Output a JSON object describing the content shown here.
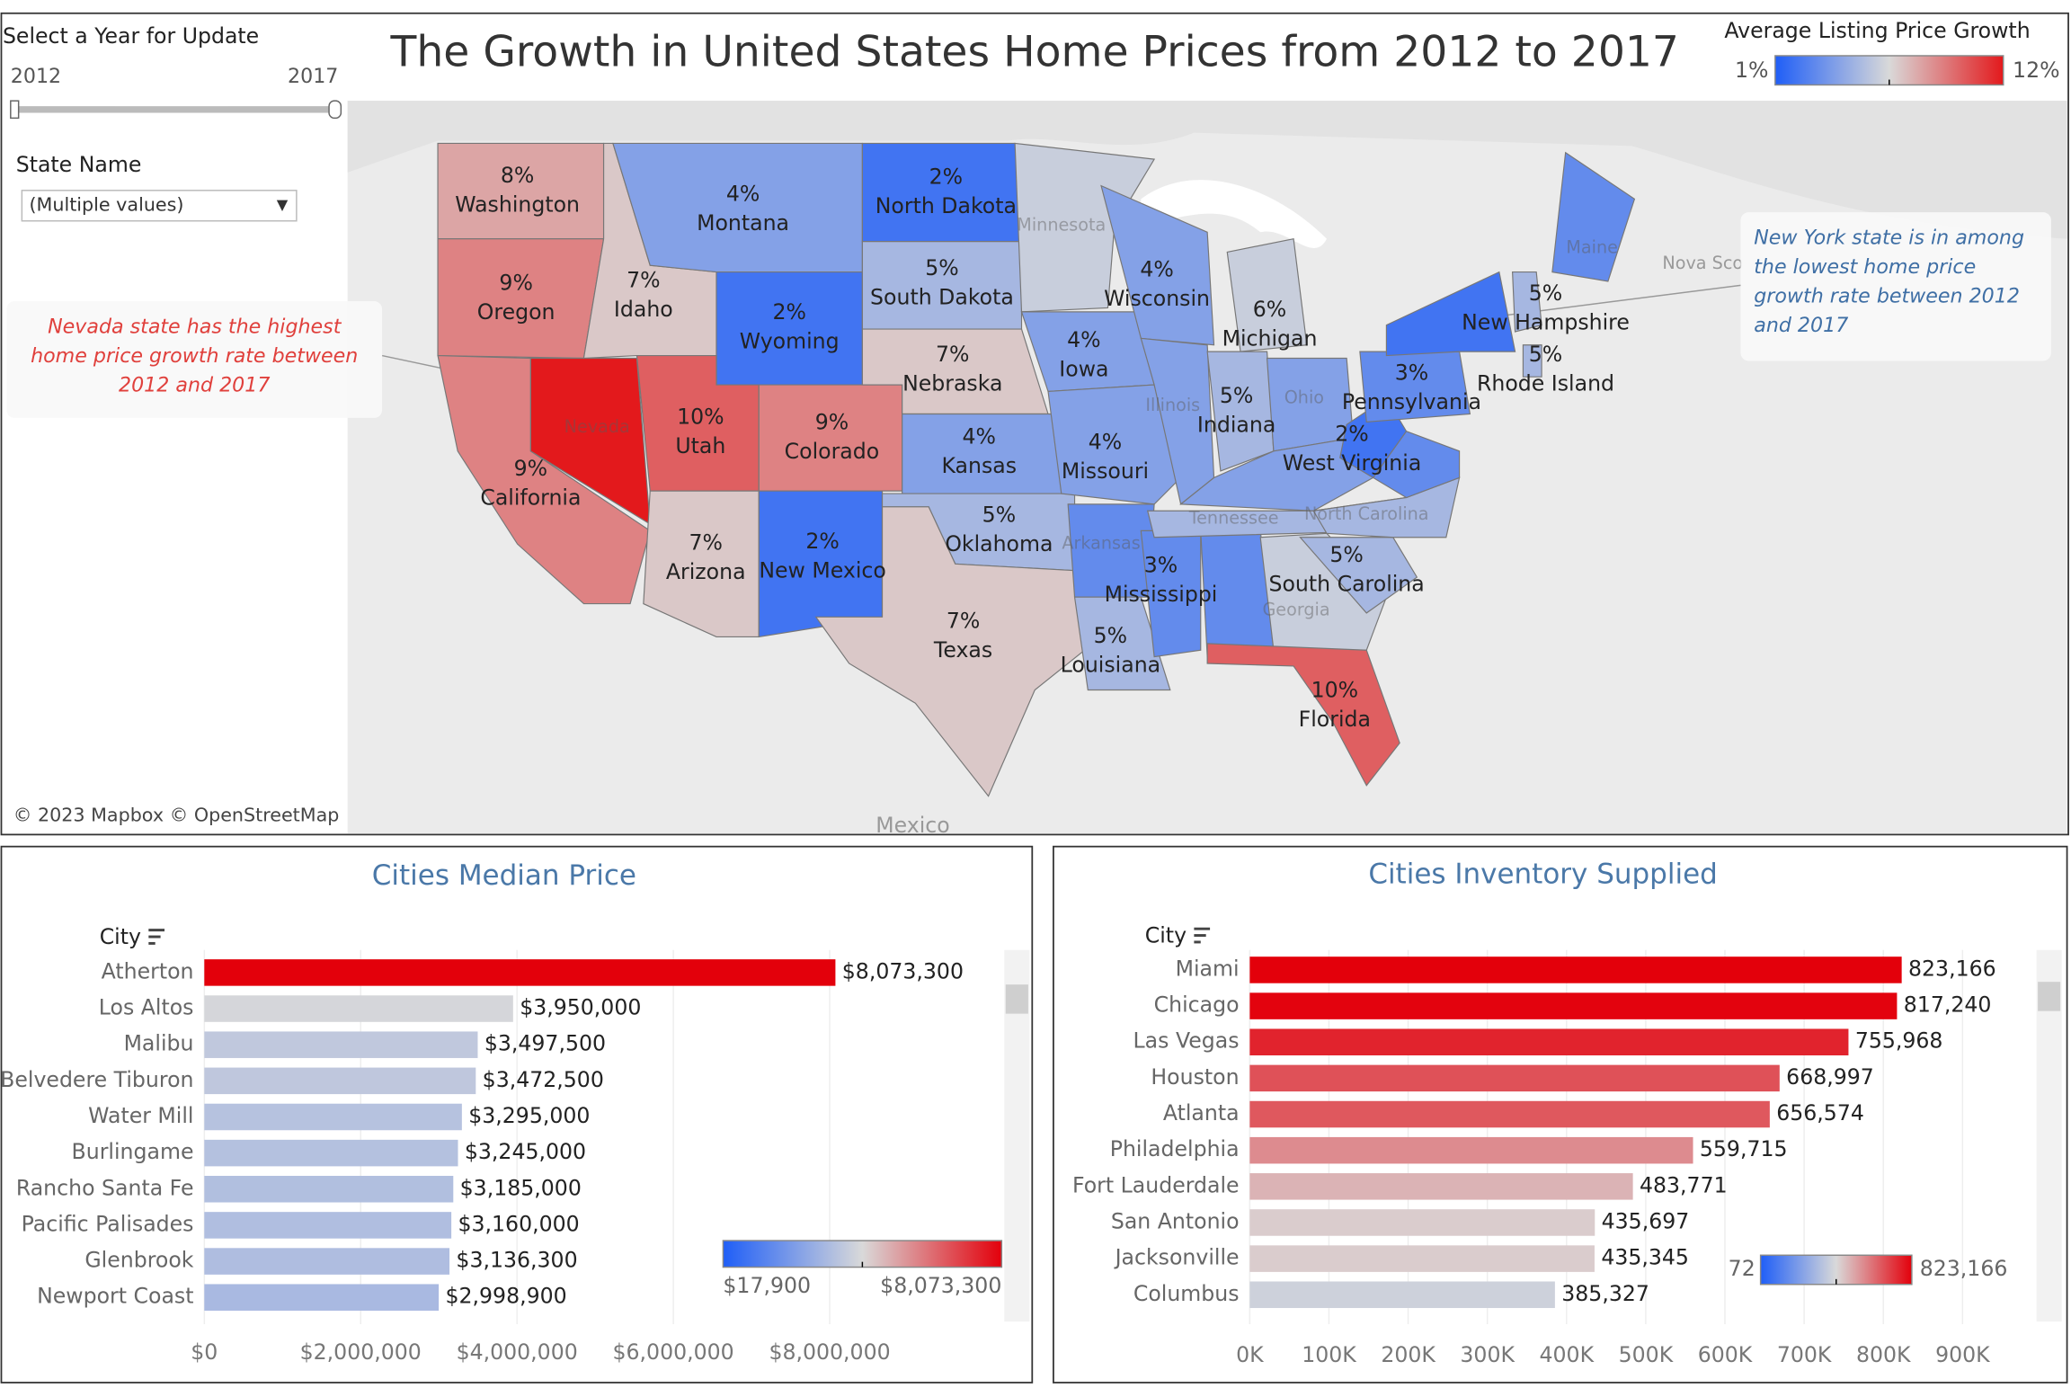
{
  "dashboard": {
    "title": "The Growth in United States Home Prices from 2012 to 2017",
    "controls": {
      "year_label": "Select a Year for Update",
      "year_range": [
        2012,
        2017
      ],
      "state_label": "State Name",
      "state_value": "(Multiple values)"
    }
  },
  "chart_data": [
    {
      "type": "map",
      "categories": [
        "Washington",
        "Oregon",
        "California",
        "Nevada",
        "Idaho",
        "Montana",
        "Wyoming",
        "Utah",
        "Colorado",
        "Arizona",
        "New Mexico",
        "North Dakota",
        "South Dakota",
        "Nebraska",
        "Kansas",
        "Oklahoma",
        "Texas",
        "Minnesota",
        "Iowa",
        "Missouri",
        "Arkansas",
        "Louisiana",
        "Mississippi",
        null,
        "Wisconsin",
        "Illinois",
        "Michigan",
        "Indiana",
        "Ohio",
        null,
        "Tennessee",
        "Georgia",
        "Florida",
        "South Carolina",
        "North Carolina",
        null,
        "West Virginia",
        "Pennsylvania",
        null,
        "New Hampshire",
        "Rhode Island",
        "Maine"
      ],
      "values": [
        8,
        9,
        9,
        12,
        7,
        4,
        2,
        10,
        9,
        7,
        2,
        2,
        5,
        7,
        4,
        5,
        7,
        6,
        4,
        4,
        3,
        5,
        3,
        3,
        4,
        4,
        6,
        5,
        4,
        4,
        5,
        6,
        10,
        5,
        5,
        3,
        2,
        3,
        2,
        5,
        5,
        3
      ],
      "value_labels": [
        "8%",
        "9%",
        "9%",
        null,
        "7%",
        "4%",
        "2%",
        "10%",
        "9%",
        "7%",
        "2%",
        "2%",
        "5%",
        "7%",
        "4%",
        "5%",
        "7%",
        null,
        "4%",
        "4%",
        null,
        "5%",
        "3%",
        null,
        "4%",
        null,
        "6%",
        "5%",
        null,
        null,
        null,
        null,
        "10%",
        "5%",
        null,
        null,
        "2%",
        "3%",
        null,
        "5%",
        "5%",
        null
      ],
      "legend": {
        "title": "Average Listing Price Growth",
        "range": [
          {
            "value": 1,
            "label": "1%"
          },
          {
            "value": 12,
            "label": "12%"
          }
        ],
        "colors": [
          "#1f5ef7",
          "#d9d9d9",
          "#e3191c"
        ]
      },
      "annotations": [
        {
          "text": "Nevada state has the highest home price growth rate between 2012 and 2017"
        },
        {
          "text": "New York state is in among the lowest home price growth rate between 2012 and 2017"
        }
      ],
      "basemap_labels": [
        "Mexico",
        "Nova Sco"
      ],
      "attribution": "© 2023 Mapbox © OpenStreetMap"
    },
    {
      "type": "bar",
      "orientation": "horizontal",
      "title": "Cities Median Price",
      "y_label": "City",
      "categories": [
        "Atherton",
        "Los Altos",
        "Malibu",
        "Belvedere Tiburon",
        "Water Mill",
        "Burlingame",
        "Rancho Santa Fe",
        "Pacific Palisades",
        "Glenbrook",
        "Newport Coast"
      ],
      "values": [
        8073300,
        3950000,
        3497500,
        3472500,
        3295000,
        3245000,
        3185000,
        3160000,
        3136300,
        2998900
      ],
      "value_labels": [
        "$8,073,300",
        "$3,950,000",
        "$3,497,500",
        "$3,472,500",
        "$3,295,000",
        "$3,245,000",
        "$3,185,000",
        "$3,160,000",
        "$3,136,300",
        "$2,998,900"
      ],
      "xlim": [
        0,
        10200000
      ],
      "xticks": [
        {
          "value": 0,
          "label": "$0"
        },
        {
          "value": 2000000,
          "label": "$2,000,000"
        },
        {
          "value": 4000000,
          "label": "$4,000,000"
        },
        {
          "value": 6000000,
          "label": "$6,000,000"
        },
        {
          "value": 8000000,
          "label": "$8,000,000"
        }
      ],
      "grid": true,
      "legend": {
        "range": [
          {
            "value": 17900,
            "label": "$17,900"
          },
          {
            "value": 8073300,
            "label": "$8,073,300"
          }
        ],
        "colors": [
          "#1f5ef7",
          "#d9d9d9",
          "#e3000b"
        ]
      }
    },
    {
      "type": "bar",
      "orientation": "horizontal",
      "title": "Cities Inventory Supplied",
      "y_label": "City",
      "categories": [
        "Miami",
        "Chicago",
        "Las Vegas",
        "Houston",
        "Atlanta",
        "Philadelphia",
        "Fort Lauderdale",
        "San Antonio",
        "Jacksonville",
        "Columbus"
      ],
      "values": [
        823166,
        817240,
        755968,
        668997,
        656574,
        559715,
        483771,
        435697,
        435345,
        385327
      ],
      "value_labels": [
        "823,166",
        "817,240",
        "755,968",
        "668,997",
        "656,574",
        "559,715",
        "483,771",
        "435,697",
        "435,345",
        "385,327"
      ],
      "xlim": [
        0,
        980000
      ],
      "xticks": [
        {
          "value": 0,
          "label": "0K"
        },
        {
          "value": 100000,
          "label": "100K"
        },
        {
          "value": 200000,
          "label": "200K"
        },
        {
          "value": 300000,
          "label": "300K"
        },
        {
          "value": 400000,
          "label": "400K"
        },
        {
          "value": 500000,
          "label": "500K"
        },
        {
          "value": 600000,
          "label": "600K"
        },
        {
          "value": 700000,
          "label": "700K"
        },
        {
          "value": 800000,
          "label": "800K"
        },
        {
          "value": 900000,
          "label": "900K"
        }
      ],
      "grid": true,
      "legend": {
        "range": [
          72,
          {
            "value": 823166,
            "label": "823,166"
          }
        ],
        "colors": [
          "#1f5ef7",
          "#d9d9d9",
          "#e3000b"
        ]
      }
    }
  ]
}
